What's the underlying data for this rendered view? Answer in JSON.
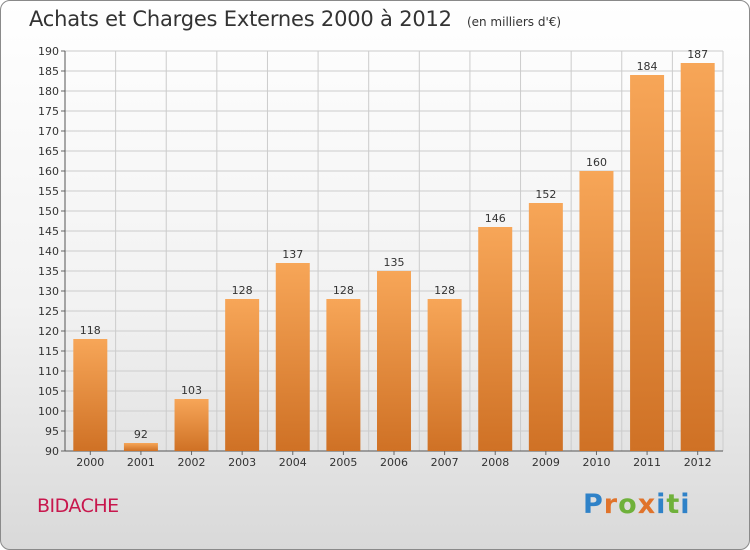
{
  "title": "Achats et Charges Externes 2000 à 2012",
  "unit": "(en milliers d'€)",
  "commune": "BIDACHE",
  "logo": {
    "letters": [
      "P",
      "r",
      "o",
      "x",
      "i",
      "t",
      "i"
    ],
    "colors": [
      "#2f82c8",
      "#e0732b",
      "#6fb13b",
      "#e0732b",
      "#2f82c8",
      "#6fb13b",
      "#2f82c8"
    ]
  },
  "colors": {
    "bar_top": "#f7a658",
    "bar_bottom": "#cf7125",
    "grid": "#cccccc",
    "text": "#333333",
    "commune": "#c8174d"
  },
  "chart_data": {
    "type": "bar",
    "categories": [
      "2000",
      "2001",
      "2002",
      "2003",
      "2004",
      "2005",
      "2006",
      "2007",
      "2008",
      "2009",
      "2010",
      "2011",
      "2012"
    ],
    "values": [
      118,
      92,
      103,
      128,
      137,
      128,
      135,
      128,
      146,
      152,
      160,
      184,
      187
    ],
    "ylim": [
      90,
      190
    ],
    "ytick_step": 5,
    "grid": true,
    "data_labels": true
  }
}
